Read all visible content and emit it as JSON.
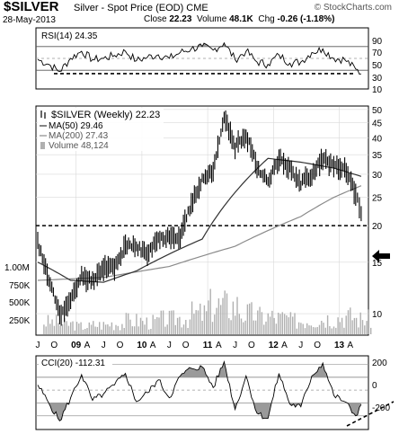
{
  "header": {
    "symbol": "$SILVER",
    "description": "Silver - Spot Price (EOD)  CME",
    "brand": "© StockCharts.com",
    "date": "28-May-2013",
    "close_label": "Close",
    "close_value": "22.23",
    "volume_label": "Volume",
    "volume_value": "48.1K",
    "chg_label": "Chg",
    "chg_value": "-0.26 (-1.18%)"
  },
  "rsi_panel": {
    "legend": "RSI(14) 24.35",
    "levels": [
      "90",
      "70",
      "50",
      "30",
      "10"
    ]
  },
  "price_panel": {
    "legend_main": "$SILVER (Weekly) 22.23",
    "legend_ma50": "MA(50) 29.46",
    "legend_ma200": "MA(200) 27.43",
    "legend_volume": "Volume 48,124",
    "price_ticks": [
      "50",
      "45",
      "40",
      "35",
      "30",
      "25",
      "20",
      "15",
      "10"
    ],
    "volume_ticks": [
      "1.00M",
      "750K",
      "500K",
      "250K"
    ]
  },
  "cci_panel": {
    "legend": "CCI(20) -112.31",
    "levels": [
      "200",
      "0",
      "-200"
    ]
  },
  "x_axis": {
    "labels": [
      "J",
      "O",
      "09",
      "A",
      "J",
      "O",
      "10",
      "A",
      "J",
      "O",
      "11",
      "A",
      "J",
      "O",
      "12",
      "A",
      "J",
      "O",
      "13",
      "A"
    ]
  },
  "colors": {
    "line": "#000000",
    "ma50": "#333333",
    "ma200": "#8a8a8a",
    "volume": "#b0b0b0",
    "fill": "#9a9a9a",
    "background": "#ffffff",
    "grid": "#d9d9d9"
  },
  "chart_data": [
    {
      "type": "line",
      "title": "RSI(14) 24.35",
      "ylim": [
        0,
        100
      ],
      "reference_lines": [
        70,
        50,
        30
      ],
      "support_line": 24.35,
      "series": [
        {
          "name": "RSI(14)",
          "x": [
            "2008-06",
            "2008-08",
            "2008-10",
            "2008-12",
            "2009-02",
            "2009-04",
            "2009-06",
            "2009-08",
            "2009-10",
            "2009-12",
            "2010-02",
            "2010-04",
            "2010-06",
            "2010-08",
            "2010-10",
            "2010-12",
            "2011-02",
            "2011-04",
            "2011-06",
            "2011-08",
            "2011-10",
            "2011-12",
            "2012-02",
            "2012-04",
            "2012-06",
            "2012-08",
            "2012-10",
            "2012-12",
            "2013-02",
            "2013-04",
            "2013-05"
          ],
          "values": [
            48,
            40,
            28,
            50,
            62,
            48,
            50,
            55,
            62,
            46,
            52,
            56,
            50,
            60,
            66,
            70,
            64,
            76,
            48,
            62,
            44,
            40,
            56,
            42,
            44,
            60,
            66,
            50,
            48,
            32,
            24
          ]
        }
      ]
    },
    {
      "type": "line",
      "title": "$SILVER (Weekly) 22.23",
      "y_scale": "log",
      "ylim": [
        8.5,
        51
      ],
      "reference_line": 20,
      "series": [
        {
          "name": "$SILVER (Weekly)",
          "x": [
            "2008-06",
            "2008-08",
            "2008-10",
            "2008-12",
            "2009-02",
            "2009-04",
            "2009-06",
            "2009-08",
            "2009-10",
            "2009-12",
            "2010-02",
            "2010-04",
            "2010-06",
            "2010-08",
            "2010-10",
            "2010-12",
            "2011-02",
            "2011-04",
            "2011-06",
            "2011-08",
            "2011-10",
            "2011-12",
            "2012-02",
            "2012-04",
            "2012-06",
            "2012-08",
            "2012-10",
            "2012-12",
            "2013-02",
            "2013-04",
            "2013-05"
          ],
          "values": [
            17.5,
            13.0,
            10.0,
            11.0,
            13.5,
            13.0,
            14.5,
            14.5,
            17.0,
            17.0,
            16.0,
            18.0,
            18.5,
            18.5,
            23.5,
            29.0,
            30.5,
            47.0,
            37.0,
            41.0,
            32.0,
            28.0,
            34.0,
            31.5,
            28.0,
            30.0,
            34.0,
            32.0,
            31.0,
            26.0,
            22.2
          ]
        },
        {
          "name": "MA(50) 29.46",
          "x": [
            "2008-06",
            "2008-12",
            "2009-06",
            "2009-12",
            "2010-06",
            "2010-12",
            "2011-06",
            "2011-12",
            "2012-06",
            "2012-12",
            "2013-05"
          ],
          "values": [
            15.0,
            13.0,
            12.8,
            14.0,
            16.0,
            18.0,
            26.0,
            34.0,
            33.0,
            31.5,
            29.5
          ]
        },
        {
          "name": "MA(200) 27.43",
          "x": [
            "2008-06",
            "2009-06",
            "2010-06",
            "2011-06",
            "2012-06",
            "2012-12",
            "2013-05"
          ],
          "values": [
            13.0,
            13.3,
            14.5,
            17.0,
            21.5,
            25.0,
            27.4
          ]
        }
      ]
    },
    {
      "type": "bar",
      "title": "Volume 48,124",
      "ylim": [
        0,
        1000000
      ],
      "series": [
        {
          "name": "Volume",
          "x": [
            "2008-Q3",
            "2008-Q4",
            "2009-Q1",
            "2009-Q2",
            "2009-Q3",
            "2009-Q4",
            "2010-Q1",
            "2010-Q2",
            "2010-Q3",
            "2010-Q4",
            "2011-Q1",
            "2011-Q2",
            "2011-Q3",
            "2011-Q4",
            "2012-Q1",
            "2012-Q2",
            "2012-Q3",
            "2012-Q4",
            "2013-Q1",
            "2013-Q2"
          ],
          "values": [
            180000,
            150000,
            120000,
            140000,
            160000,
            200000,
            180000,
            220000,
            240000,
            300000,
            420000,
            420000,
            300000,
            260000,
            240000,
            200000,
            220000,
            240000,
            260000,
            220000
          ]
        }
      ]
    },
    {
      "type": "line",
      "title": "CCI(20) -112.31",
      "ylim": [
        -300,
        260
      ],
      "reference_lines": [
        200,
        100,
        0,
        -100,
        -200
      ],
      "series": [
        {
          "name": "CCI(20)",
          "x": [
            "2008-06",
            "2008-08",
            "2008-10",
            "2008-12",
            "2009-02",
            "2009-04",
            "2009-06",
            "2009-08",
            "2009-10",
            "2009-12",
            "2010-02",
            "2010-04",
            "2010-06",
            "2010-08",
            "2010-10",
            "2010-12",
            "2011-02",
            "2011-04",
            "2011-06",
            "2011-08",
            "2011-10",
            "2011-12",
            "2012-02",
            "2012-04",
            "2012-06",
            "2012-08",
            "2012-10",
            "2012-12",
            "2013-02",
            "2013-04",
            "2013-05"
          ],
          "values": [
            40,
            -100,
            -240,
            -60,
            120,
            -80,
            -30,
            40,
            130,
            -90,
            -20,
            80,
            -60,
            110,
            170,
            180,
            20,
            220,
            -150,
            110,
            -180,
            -220,
            130,
            -110,
            -130,
            110,
            210,
            -40,
            -90,
            -200,
            -112
          ]
        }
      ]
    }
  ]
}
